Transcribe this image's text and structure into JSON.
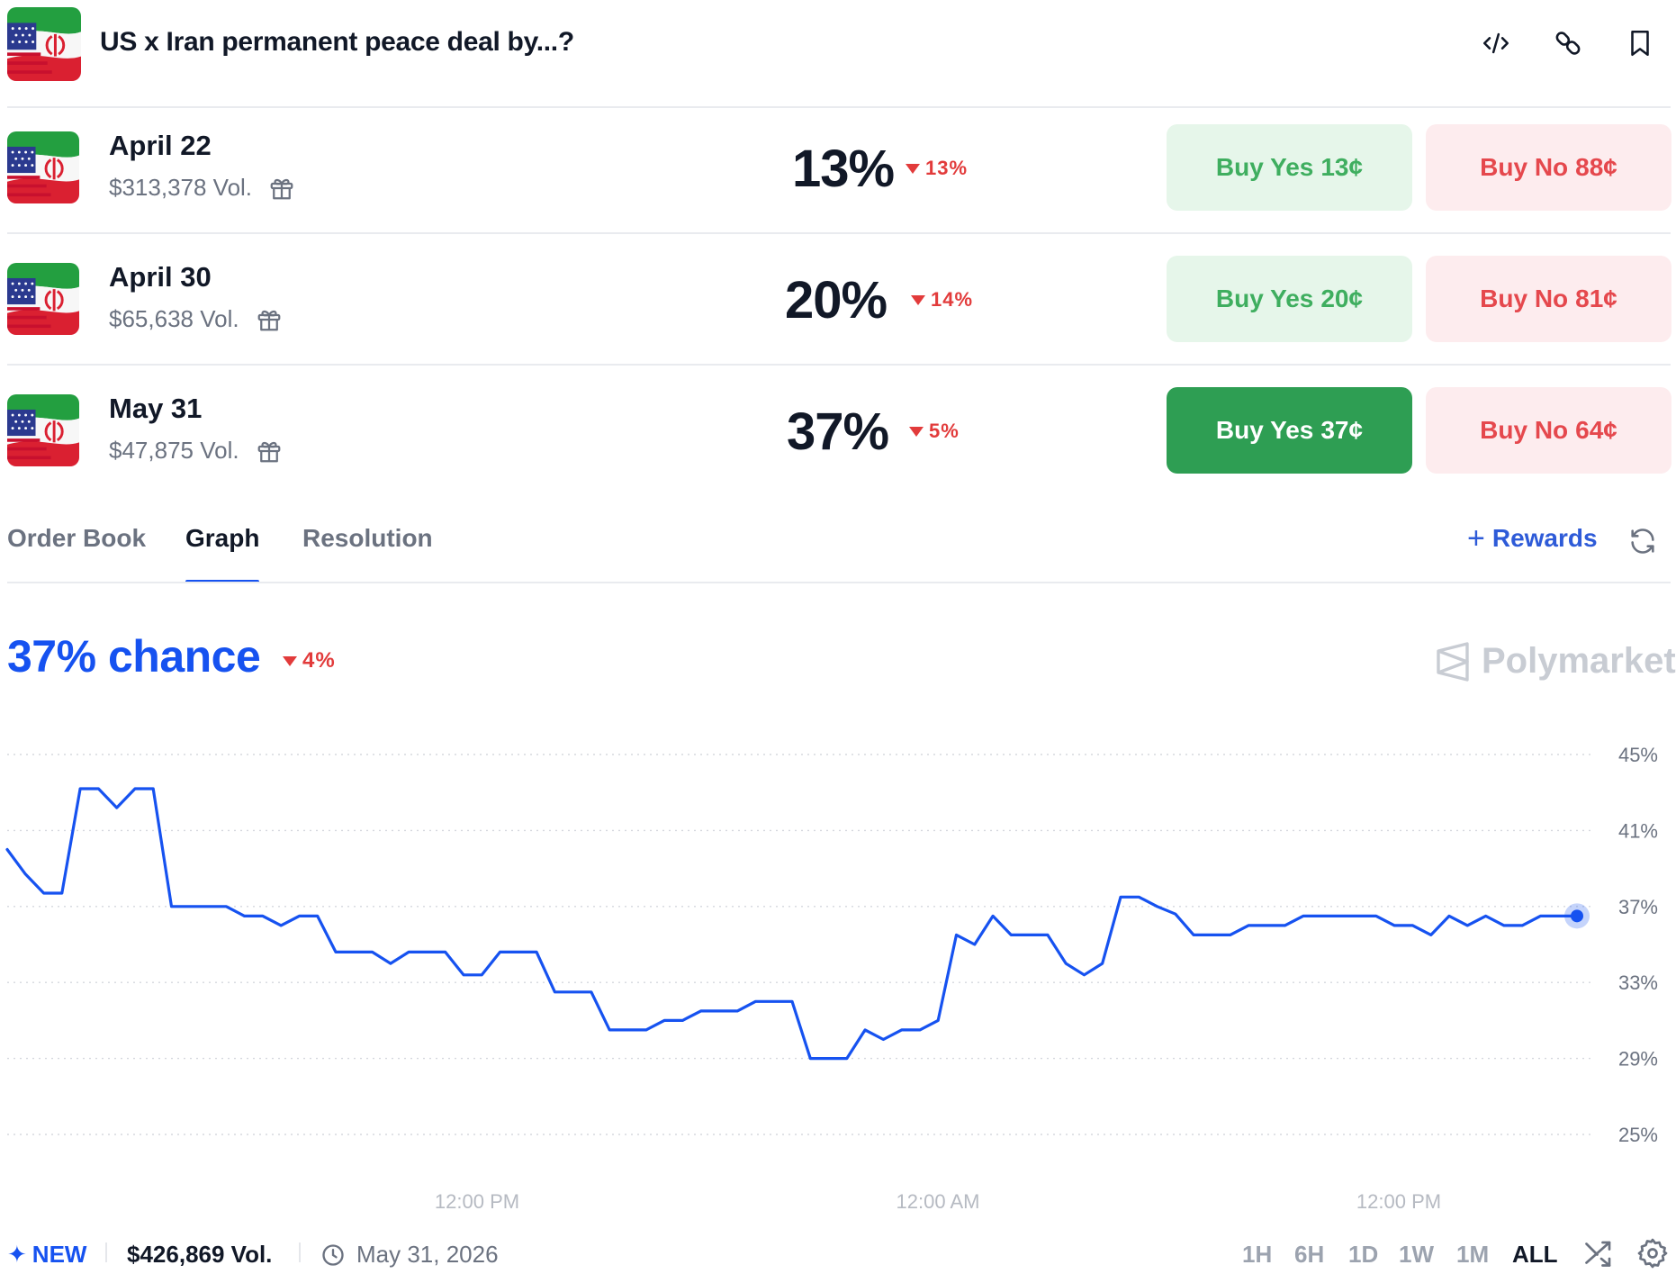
{
  "header": {
    "title": "US x Iran permanent peace deal by...?",
    "icons": [
      "embed-code-icon",
      "link-icon",
      "bookmark-icon"
    ]
  },
  "markets": [
    {
      "name": "April 22",
      "volume": "$313,378 Vol.",
      "chance": "13%",
      "change": "13%",
      "buy_yes_label": "Buy Yes",
      "buy_yes_price": "13¢",
      "buy_no_label": "Buy No",
      "buy_no_price": "88¢"
    },
    {
      "name": "April 30",
      "volume": "$65,638 Vol.",
      "chance": "20%",
      "change": "14%",
      "buy_yes_label": "Buy Yes",
      "buy_yes_price": "20¢",
      "buy_no_label": "Buy No",
      "buy_no_price": "81¢"
    },
    {
      "name": "May 31",
      "volume": "$47,875 Vol.",
      "chance": "37%",
      "change": "5%",
      "buy_yes_label": "Buy Yes",
      "buy_yes_price": "37¢",
      "buy_no_label": "Buy No",
      "buy_no_price": "64¢"
    }
  ],
  "tabs": {
    "items": [
      "Order Book",
      "Graph",
      "Resolution"
    ],
    "active": "Graph",
    "rewards_label": "Rewards"
  },
  "graph": {
    "chance_label": "37% chance",
    "change": "4%",
    "brand": "Polymarket"
  },
  "chart_data": {
    "type": "line",
    "y_ticks": [
      "45%",
      "41%",
      "37%",
      "33%",
      "29%",
      "25%"
    ],
    "x_ticks": [
      "12:00 PM",
      "12:00 AM",
      "12:00 PM"
    ],
    "ylim": [
      25,
      45
    ],
    "grid": true,
    "series": [
      {
        "color": "#1652f0",
        "y": [
          40,
          38.7,
          37.7,
          37.7,
          43.2,
          43.2,
          42.2,
          43.2,
          43.2,
          37,
          37,
          37,
          37,
          36.5,
          36.5,
          36,
          36.5,
          36.5,
          34.6,
          34.6,
          34.6,
          34,
          34.6,
          34.6,
          34.6,
          33.4,
          33.4,
          34.6,
          34.6,
          34.6,
          32.5,
          32.5,
          32.5,
          30.5,
          30.5,
          30.5,
          31,
          31,
          31.5,
          31.5,
          31.5,
          32,
          32,
          32,
          29,
          29,
          29,
          30.5,
          30,
          30.5,
          30.5,
          31,
          35.5,
          35,
          36.5,
          35.5,
          35.5,
          35.5,
          34,
          33.4,
          34,
          37.5,
          37.5,
          37,
          36.6,
          35.5,
          35.5,
          35.5,
          36,
          36,
          36,
          36.5,
          36.5,
          36.5,
          36.5,
          36.5,
          36,
          36,
          35.5,
          36.5,
          36,
          36.5,
          36,
          36,
          36.5,
          36.5,
          36.5
        ]
      }
    ],
    "current_value": 36.5
  },
  "footer": {
    "new_label": "NEW",
    "volume": "$426,869 Vol.",
    "end_date": "May 31, 2026",
    "ranges": [
      "1H",
      "6H",
      "1D",
      "1W",
      "1M",
      "ALL"
    ],
    "active_range": "ALL"
  }
}
